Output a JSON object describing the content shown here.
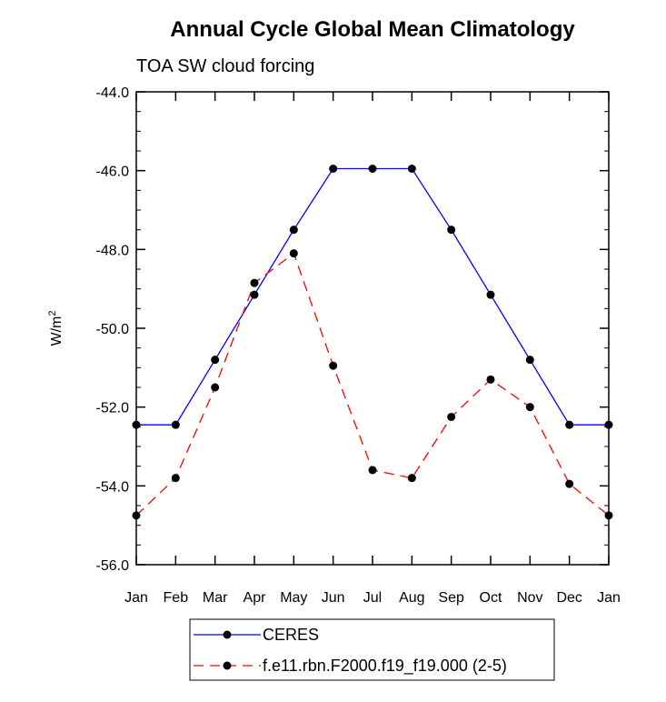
{
  "chart_data": {
    "type": "line",
    "title": "Annual Cycle Global Mean Climatology",
    "subtitle": "TOA SW cloud forcing",
    "xlabel": "",
    "ylabel": "W/m",
    "ylabel_superscript": "2",
    "categories": [
      "Jan",
      "Feb",
      "Mar",
      "Apr",
      "May",
      "Jun",
      "Jul",
      "Aug",
      "Sep",
      "Oct",
      "Nov",
      "Dec",
      "Jan"
    ],
    "ylim": [
      -56.0,
      -44.0
    ],
    "yticks": [
      -56.0,
      -54.0,
      -52.0,
      -50.0,
      -48.0,
      -46.0,
      -44.0
    ],
    "ytick_labels": [
      "-56.0",
      "-54.0",
      "-52.0",
      "-50.0",
      "-48.0",
      "-46.0",
      "-44.0"
    ],
    "grid": false,
    "legend_position": "bottom",
    "series": [
      {
        "name": "CERES",
        "color": "#0000ff",
        "line_style": "solid",
        "values": [
          -52.45,
          -52.45,
          -50.8,
          -49.15,
          -47.5,
          -45.95,
          -45.95,
          -45.95,
          -47.5,
          -49.15,
          -50.8,
          -52.45,
          -52.45
        ]
      },
      {
        "name": "f.e11.rbn.F2000.f19_f19.000 (2-5)",
        "color": "#ff0000",
        "line_style": "dashed",
        "values": [
          -54.75,
          -53.8,
          -51.5,
          -48.85,
          -48.1,
          -50.95,
          -53.6,
          -53.8,
          -52.25,
          -51.3,
          -52.0,
          -53.95,
          -54.75
        ]
      }
    ]
  }
}
